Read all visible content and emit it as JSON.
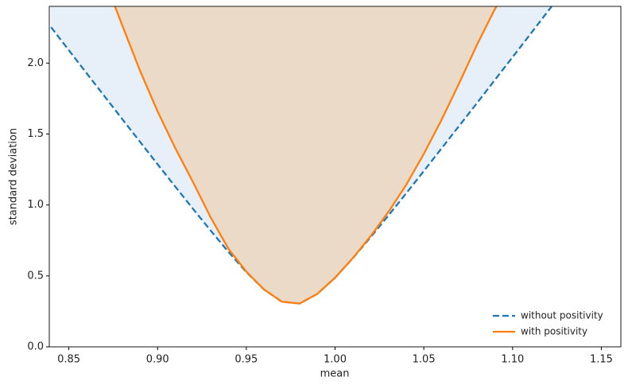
{
  "chart_data": {
    "type": "line",
    "x_label": "mean",
    "y_label": "standard deviation",
    "xlim": [
      0.839,
      1.161
    ],
    "ylim": [
      0,
      2.4
    ],
    "xticks": [
      0.85,
      {
        "value": 0.9,
        "label": "0.90"
      },
      0.95,
      {
        "value": 1.0,
        "label": "1.00"
      },
      1.05,
      {
        "value": 1.1,
        "label": "1.10"
      },
      1.15
    ],
    "yticks": [
      {
        "value": 0,
        "label": "0.0"
      },
      0.5,
      {
        "value": 1,
        "label": "1.0"
      },
      1.5,
      {
        "value": 2,
        "label": "2.0"
      }
    ],
    "legend": "lower right",
    "series": [
      {
        "name": "without positivity",
        "color": "#1f77b4",
        "fill_color": "#e7eff8",
        "linestyle": "dashed",
        "x": [
          0.84,
          0.85,
          0.86,
          0.87,
          0.88,
          0.89,
          0.9,
          0.91,
          0.92,
          0.93,
          0.94,
          0.95,
          0.96,
          0.97,
          0.98,
          0.99,
          1.0,
          1.01,
          1.02,
          1.03,
          1.04,
          1.05,
          1.06,
          1.07,
          1.08,
          1.09,
          1.1,
          1.11,
          1.12,
          1.122
        ],
        "values": [
          2.253,
          2.091,
          1.929,
          1.768,
          1.607,
          1.447,
          1.287,
          1.129,
          0.972,
          0.818,
          0.668,
          0.527,
          0.404,
          0.318,
          0.305,
          0.373,
          0.487,
          0.625,
          0.772,
          0.925,
          1.081,
          1.239,
          1.399,
          1.559,
          1.719,
          1.881,
          2.042,
          2.204,
          2.367,
          2.399
        ]
      },
      {
        "name": "with positivity",
        "color": "#ff7f0e",
        "fill_color": "#ebdac8",
        "linestyle": "solid",
        "x": [
          0.876,
          0.88,
          0.89,
          0.9,
          0.91,
          0.92,
          0.93,
          0.94,
          0.95,
          0.96,
          0.97,
          0.98,
          0.99,
          1.0,
          1.01,
          1.02,
          1.03,
          1.04,
          1.05,
          1.06,
          1.07,
          1.08,
          1.09,
          1.091
        ],
        "values": [
          2.4,
          2.27,
          1.95,
          1.66,
          1.4,
          1.16,
          0.91,
          0.69,
          0.53,
          0.404,
          0.318,
          0.305,
          0.373,
          0.487,
          0.625,
          0.78,
          0.95,
          1.14,
          1.36,
          1.6,
          1.86,
          2.13,
          2.38,
          2.4
        ]
      }
    ]
  }
}
